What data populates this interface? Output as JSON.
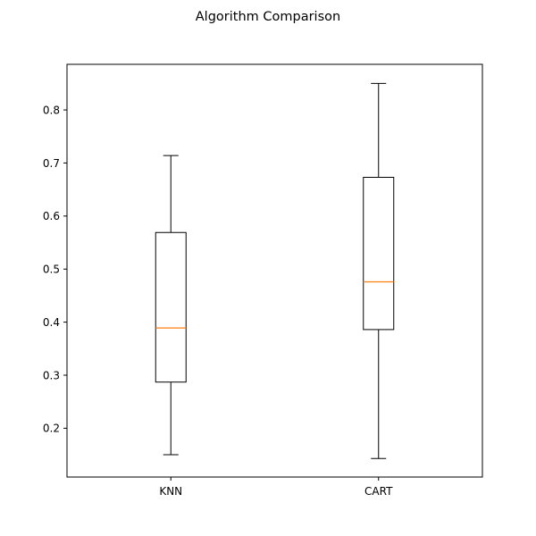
{
  "chart_data": {
    "type": "box",
    "title": "Algorithm Comparison",
    "xlabel": "",
    "ylabel": "",
    "ylim": [
      0.108,
      0.886
    ],
    "yticks": [
      0.2,
      0.3,
      0.4,
      0.5,
      0.6,
      0.7,
      0.8
    ],
    "ytick_labels": [
      "0.2",
      "0.3",
      "0.4",
      "0.5",
      "0.6",
      "0.7",
      "0.8"
    ],
    "categories": [
      "KNN",
      "CART"
    ],
    "boxes": [
      {
        "name": "KNN",
        "whisker_low": 0.15,
        "q1": 0.287,
        "median": 0.389,
        "q3": 0.569,
        "whisker_high": 0.714
      },
      {
        "name": "CART",
        "whisker_low": 0.143,
        "q1": 0.386,
        "median": 0.476,
        "q3": 0.673,
        "whisker_high": 0.85
      }
    ],
    "grid": false,
    "colors": {
      "box": "#000000",
      "median": "#ff7f0e",
      "background": "#ffffff"
    }
  }
}
